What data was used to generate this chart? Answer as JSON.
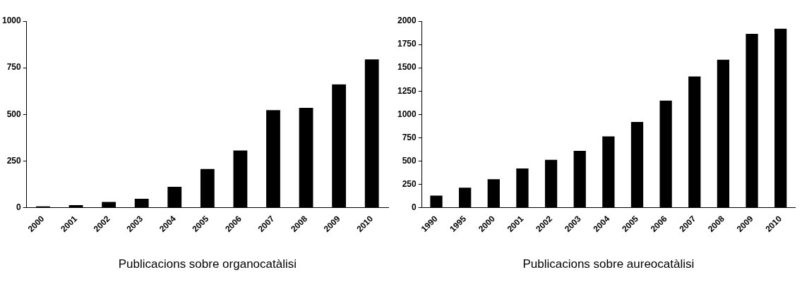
{
  "chart_data": [
    {
      "type": "bar",
      "xlabel": "Publicacions sobre organocatàlisi",
      "categories": [
        "2000",
        "2001",
        "2002",
        "2003",
        "2004",
        "2005",
        "2006",
        "2007",
        "2008",
        "2009",
        "2010"
      ],
      "values": [
        7,
        13,
        30,
        47,
        112,
        207,
        306,
        523,
        535,
        661,
        795
      ],
      "color": "#000000",
      "ylim": [
        0,
        1000
      ],
      "yticks": [
        0,
        250,
        500,
        750,
        1000
      ],
      "grid": false,
      "legend": false
    },
    {
      "type": "bar",
      "xlabel": "Publicacions sobre aureocatàlisi",
      "categories": [
        "1990",
        "1995",
        "2000",
        "2001",
        "2002",
        "2003",
        "2004",
        "2005",
        "2006",
        "2007",
        "2008",
        "2009",
        "2010"
      ],
      "values": [
        128,
        213,
        305,
        420,
        512,
        608,
        763,
        918,
        1147,
        1406,
        1586,
        1864,
        1918
      ],
      "color": "#000000",
      "ylim": [
        0,
        2000
      ],
      "yticks": [
        0,
        250,
        500,
        750,
        1000,
        1250,
        1500,
        1750,
        2000
      ],
      "grid": false,
      "legend": false
    }
  ]
}
